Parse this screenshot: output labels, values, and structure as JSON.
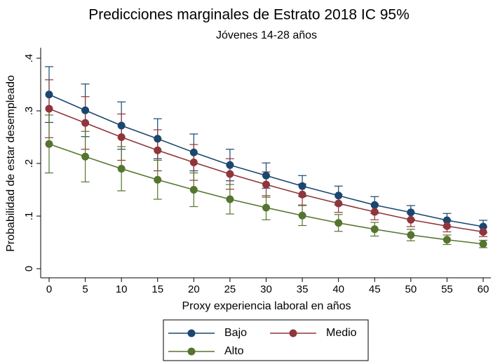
{
  "chart_data": {
    "type": "line_ci",
    "title": "Predicciones marginales de Estrato 2018 IC 95%",
    "subtitle": "Jóvenes 14-28 años",
    "x_label": "Proxy experiencia laboral en años",
    "y_label": "Probabilidad de estar desempleado",
    "x": [
      0,
      5,
      10,
      15,
      20,
      25,
      30,
      35,
      40,
      45,
      50,
      55,
      60
    ],
    "xlim": [
      0,
      60
    ],
    "xticks": [
      0,
      5,
      10,
      15,
      20,
      25,
      30,
      35,
      40,
      45,
      50,
      55,
      60
    ],
    "ylim": [
      0,
      0.4
    ],
    "yticks": [
      0,
      {
        "value": 0.1,
        "label": ".1"
      },
      {
        "value": 0.2,
        "label": ".2"
      },
      {
        "value": 0.3,
        "label": ".3"
      },
      {
        "value": 0.4,
        "label": ".4"
      }
    ],
    "series": [
      {
        "name": "Bajo",
        "color": "#1a476f",
        "values": [
          0.331,
          0.301,
          0.272,
          0.247,
          0.221,
          0.197,
          0.177,
          0.157,
          0.139,
          0.121,
          0.107,
          0.092,
          0.08
        ],
        "lower": [
          0.278,
          0.251,
          0.227,
          0.209,
          0.186,
          0.167,
          0.153,
          0.137,
          0.121,
          0.105,
          0.094,
          0.079,
          0.068
        ],
        "upper": [
          0.384,
          0.351,
          0.317,
          0.285,
          0.256,
          0.227,
          0.201,
          0.177,
          0.157,
          0.137,
          0.12,
          0.105,
          0.092
        ]
      },
      {
        "name": "Medio",
        "color": "#90353b",
        "values": [
          0.304,
          0.277,
          0.25,
          0.225,
          0.202,
          0.18,
          0.16,
          0.141,
          0.124,
          0.108,
          0.093,
          0.081,
          0.07
        ],
        "lower": [
          0.249,
          0.227,
          0.206,
          0.186,
          0.168,
          0.151,
          0.136,
          0.121,
          0.107,
          0.093,
          0.08,
          0.07,
          0.061
        ],
        "upper": [
          0.359,
          0.327,
          0.294,
          0.264,
          0.236,
          0.209,
          0.184,
          0.161,
          0.141,
          0.123,
          0.106,
          0.092,
          0.079
        ]
      },
      {
        "name": "Alto",
        "color": "#55752f",
        "values": [
          0.237,
          0.213,
          0.19,
          0.169,
          0.15,
          0.132,
          0.116,
          0.101,
          0.087,
          0.075,
          0.064,
          0.055,
          0.047
        ],
        "lower": [
          0.182,
          0.165,
          0.148,
          0.132,
          0.118,
          0.104,
          0.093,
          0.082,
          0.071,
          0.062,
          0.053,
          0.046,
          0.04
        ],
        "upper": [
          0.292,
          0.261,
          0.232,
          0.206,
          0.182,
          0.16,
          0.139,
          0.12,
          0.103,
          0.088,
          0.075,
          0.064,
          0.054
        ]
      }
    ]
  }
}
